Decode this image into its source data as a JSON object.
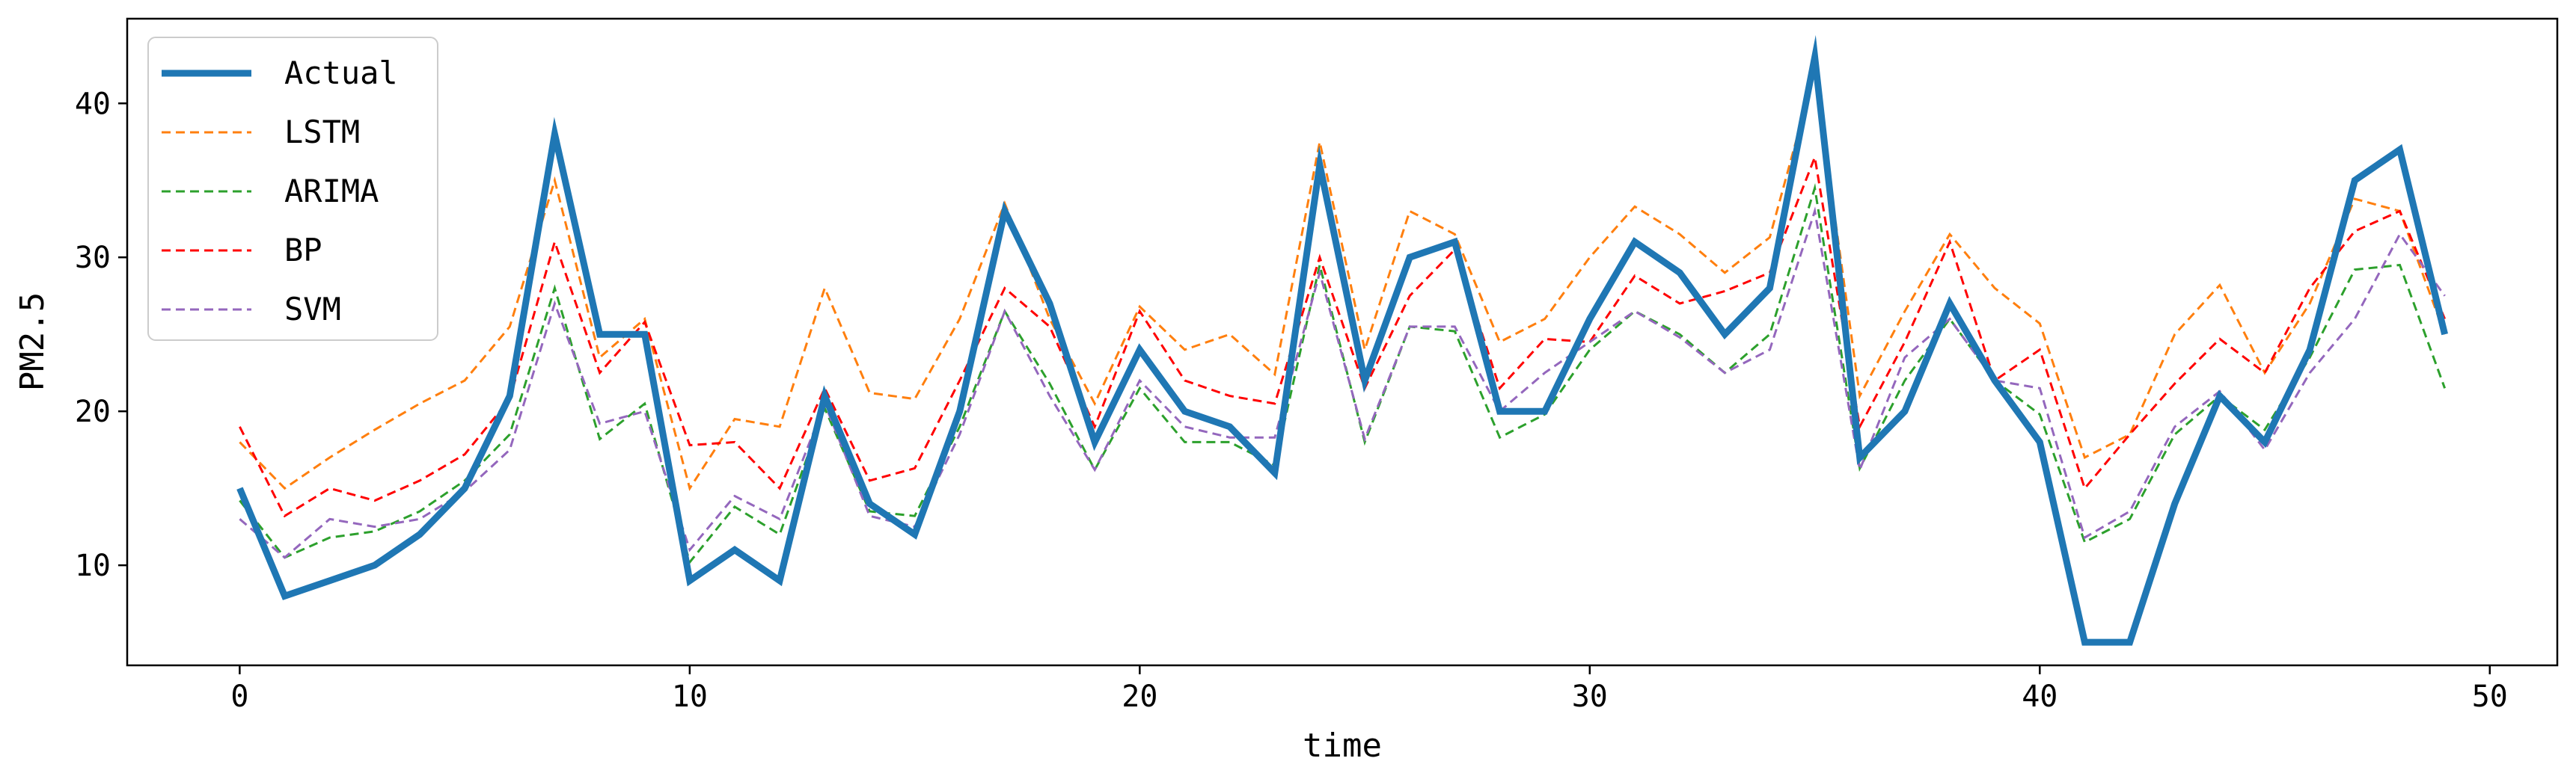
{
  "chart_data": {
    "type": "line",
    "title": "",
    "xlabel": "time",
    "ylabel": "PM2.5",
    "xlim": [
      -2.5,
      51.5
    ],
    "ylim": [
      3.5,
      45.5
    ],
    "xticks": [
      0,
      10,
      20,
      30,
      40,
      50
    ],
    "yticks": [
      10,
      20,
      30,
      40
    ],
    "grid": false,
    "legend_position": "top-left",
    "x": [
      0,
      1,
      2,
      3,
      4,
      5,
      6,
      7,
      8,
      9,
      10,
      11,
      12,
      13,
      14,
      15,
      16,
      17,
      18,
      19,
      20,
      21,
      22,
      23,
      24,
      25,
      26,
      27,
      28,
      29,
      30,
      31,
      32,
      33,
      34,
      35,
      36,
      37,
      38,
      39,
      40,
      41,
      42,
      43,
      44,
      45,
      46,
      47,
      48,
      49
    ],
    "series": [
      {
        "name": "Actual",
        "color": "#1f77b4",
        "style": "solid",
        "values": [
          15,
          8,
          9,
          10,
          12,
          15,
          21,
          38,
          25,
          25,
          9,
          11,
          9,
          21,
          14,
          12,
          20,
          33,
          27,
          18,
          24,
          20,
          19,
          16,
          36,
          22,
          30,
          31,
          20,
          20,
          26,
          31,
          29,
          25,
          28,
          43,
          17,
          20,
          27,
          22,
          18,
          5,
          5,
          14,
          21,
          18,
          24,
          35,
          37,
          25
        ]
      },
      {
        "name": "LSTM",
        "color": "#ff7f0e",
        "style": "dashed",
        "values": [
          18,
          15,
          17,
          18.8,
          20.5,
          22,
          25.5,
          35,
          23.5,
          26,
          15,
          19.5,
          19,
          28,
          21.2,
          20.8,
          26,
          33.5,
          26,
          20.5,
          26.8,
          24,
          25,
          22.4,
          37.5,
          24,
          33,
          31.5,
          24.5,
          26,
          30,
          33.3,
          31.5,
          29,
          31.3,
          42,
          21,
          26.5,
          31.5,
          28,
          25.7,
          17,
          18.5,
          25,
          28.2,
          22.5,
          27,
          33.8,
          33,
          25
        ]
      },
      {
        "name": "ARIMA",
        "color": "#2ca02c",
        "style": "dashed",
        "values": [
          14.2,
          10.5,
          11.8,
          12.2,
          13.5,
          15.5,
          18.5,
          28,
          18.2,
          20.5,
          10.2,
          13.8,
          12,
          20.2,
          13.5,
          13.2,
          19,
          26.5,
          21.8,
          16.2,
          21.5,
          18,
          18,
          16.5,
          29.5,
          18,
          25.5,
          25.2,
          18.3,
          19.8,
          24,
          26.5,
          25,
          22.5,
          25,
          34.5,
          16.3,
          22,
          26,
          22,
          19.8,
          11.5,
          13,
          18.5,
          21,
          18.8,
          23.5,
          29.2,
          29.5,
          21.5
        ]
      },
      {
        "name": "BP",
        "color": "#ff0000",
        "style": "dashed",
        "values": [
          19,
          13.2,
          15,
          14.2,
          15.5,
          17.2,
          20.8,
          31,
          22.5,
          25.8,
          17.8,
          18,
          15,
          21.5,
          15.5,
          16.3,
          22,
          28,
          25.5,
          19,
          26.5,
          22,
          21,
          20.5,
          30,
          21.5,
          27.5,
          30.5,
          21.5,
          24.7,
          24.5,
          28.8,
          27,
          27.8,
          29,
          36.5,
          19,
          24.5,
          31,
          22,
          24,
          15,
          18.5,
          21.8,
          24.7,
          22.5,
          28,
          31.7,
          33,
          26
        ]
      },
      {
        "name": "SVM",
        "color": "#9467bd",
        "style": "dashed",
        "values": [
          13,
          10.5,
          13,
          12.5,
          13,
          14.8,
          17.5,
          27,
          19.2,
          20,
          11,
          14.5,
          13,
          20.5,
          13.2,
          12.5,
          18.5,
          26.5,
          21,
          16.2,
          22,
          19,
          18.3,
          18.3,
          29,
          18.2,
          25.5,
          25.5,
          20,
          22.5,
          24.5,
          26.5,
          24.8,
          22.5,
          24,
          33,
          16.2,
          23.5,
          26,
          22,
          21.5,
          11.8,
          13.5,
          19,
          21.3,
          17.5,
          22.5,
          26,
          31.5,
          27.5
        ]
      }
    ]
  }
}
